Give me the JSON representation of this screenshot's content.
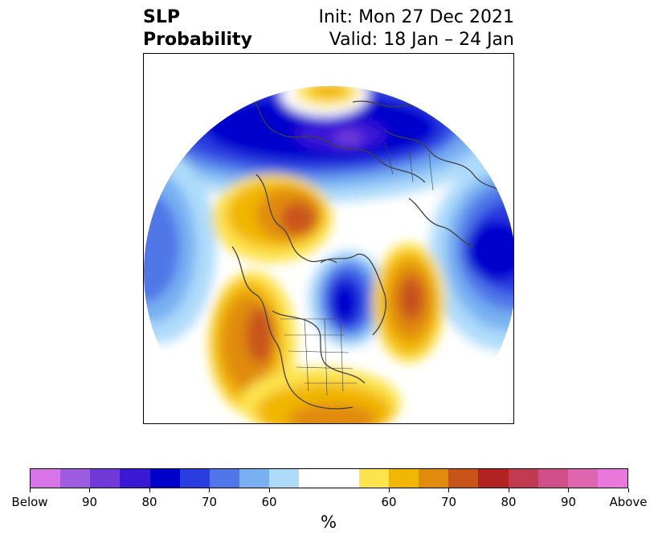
{
  "title": {
    "left_line1": "SLP",
    "left_line2": "Probability",
    "right_line1": "Init: Mon 27 Dec 2021",
    "right_line2": "Valid: 18 Jan – 24 Jan"
  },
  "colorbar": {
    "colors": [
      "#d774e8",
      "#a05ce0",
      "#6f3ad8",
      "#3a19d6",
      "#0000cd",
      "#2a3de0",
      "#4f77e8",
      "#78b0f2",
      "#aedbfa",
      "#ffffff",
      "#ffffff",
      "#fde34d",
      "#f1b600",
      "#e08b0c",
      "#c9541a",
      "#b22223",
      "#c03a50",
      "#d04e8a",
      "#e065b0",
      "#e878dc"
    ],
    "tick_labels": [
      "Below",
      "90",
      "80",
      "70",
      "60",
      "60",
      "70",
      "80",
      "90",
      "Above"
    ],
    "unit": "%"
  },
  "map": {
    "projection": "north-polar-stereographic",
    "field": "sea-level-pressure-probability",
    "anomaly_regions": [
      {
        "region": "Siberia / Arctic Russia",
        "category": "Below",
        "peak_percent": 90
      },
      {
        "region": "North Pacific",
        "category": "Below",
        "peak_percent": 80
      },
      {
        "region": "Greenland / Baffin Bay",
        "category": "Below",
        "peak_percent": 80
      },
      {
        "region": "Scandinavia",
        "category": "Above",
        "peak_percent": 70
      },
      {
        "region": "Western Europe",
        "category": "Above",
        "peak_percent": 70
      },
      {
        "region": "North Atlantic",
        "category": "Above",
        "peak_percent": 80
      },
      {
        "region": "Western North America",
        "category": "Above",
        "peak_percent": 70
      },
      {
        "region": "Southern United States",
        "category": "Above",
        "peak_percent": 70
      },
      {
        "region": "Mongolia",
        "category": "Above",
        "peak_percent": 60
      }
    ]
  }
}
